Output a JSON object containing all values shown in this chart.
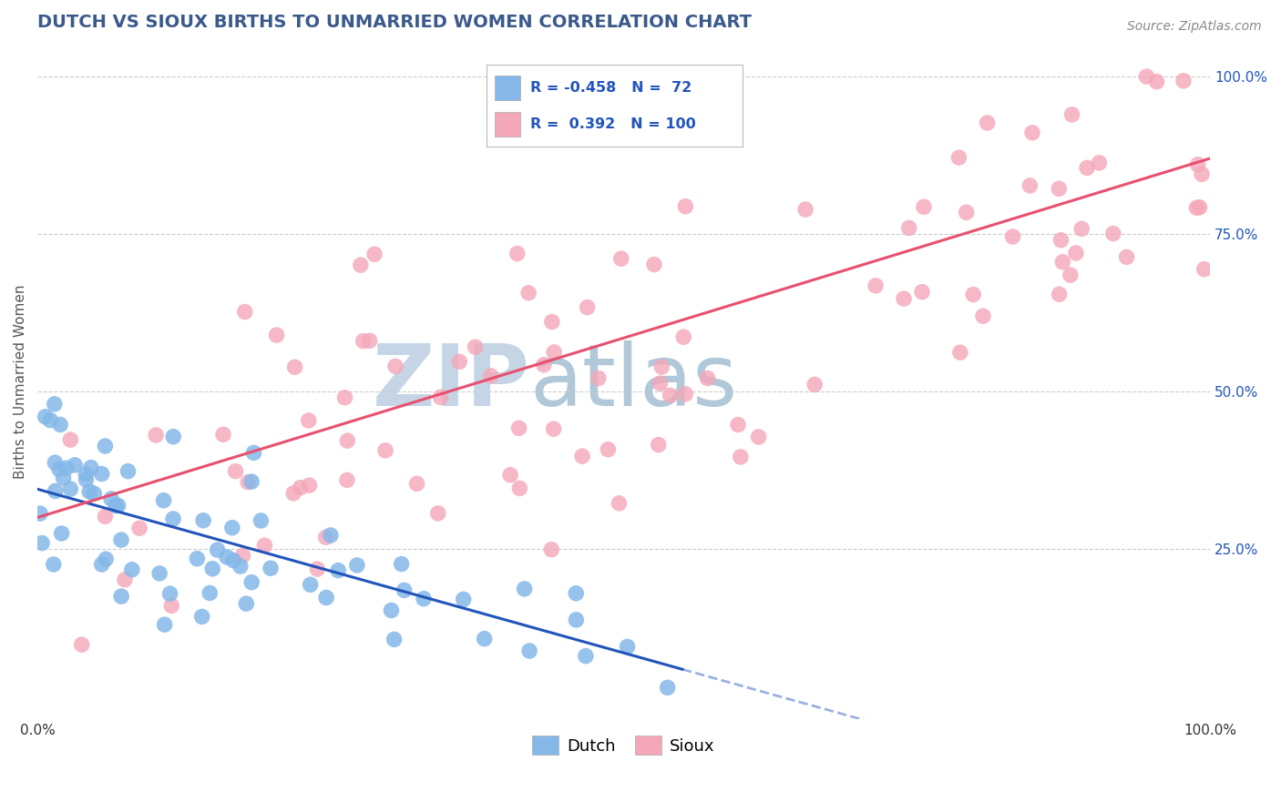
{
  "title": "DUTCH VS SIOUX BIRTHS TO UNMARRIED WOMEN CORRELATION CHART",
  "source_text": "Source: ZipAtlas.com",
  "ylabel": "Births to Unmarried Women",
  "xlim": [
    0.0,
    1.0
  ],
  "ylim": [
    -0.02,
    1.05
  ],
  "xtick_positions": [
    0.0,
    1.0
  ],
  "xtick_labels": [
    "0.0%",
    "100.0%"
  ],
  "ytick_right_labels": [
    "25.0%",
    "50.0%",
    "75.0%",
    "100.0%"
  ],
  "ytick_right_values": [
    0.25,
    0.5,
    0.75,
    1.0
  ],
  "dutch_color": "#85b8e8",
  "sioux_color": "#f4a7b9",
  "dutch_line_color": "#2255bb",
  "sioux_line_color": "#e85070",
  "dutch_R": -0.458,
  "dutch_N": 72,
  "sioux_R": 0.392,
  "sioux_N": 100,
  "watermark_zip": "ZIP",
  "watermark_atlas": "atlas",
  "watermark_color_zip": "#c5d5e5",
  "watermark_color_atlas": "#b0c8d8",
  "title_color": "#3a5a8c",
  "legend_color": "#2255bb",
  "title_fontsize": 14,
  "background_color": "#ffffff",
  "grid_color": "#cccccc",
  "dutch_line_intercept": 0.345,
  "dutch_line_slope": -0.52,
  "sioux_line_intercept": 0.3,
  "sioux_line_slope": 0.57
}
